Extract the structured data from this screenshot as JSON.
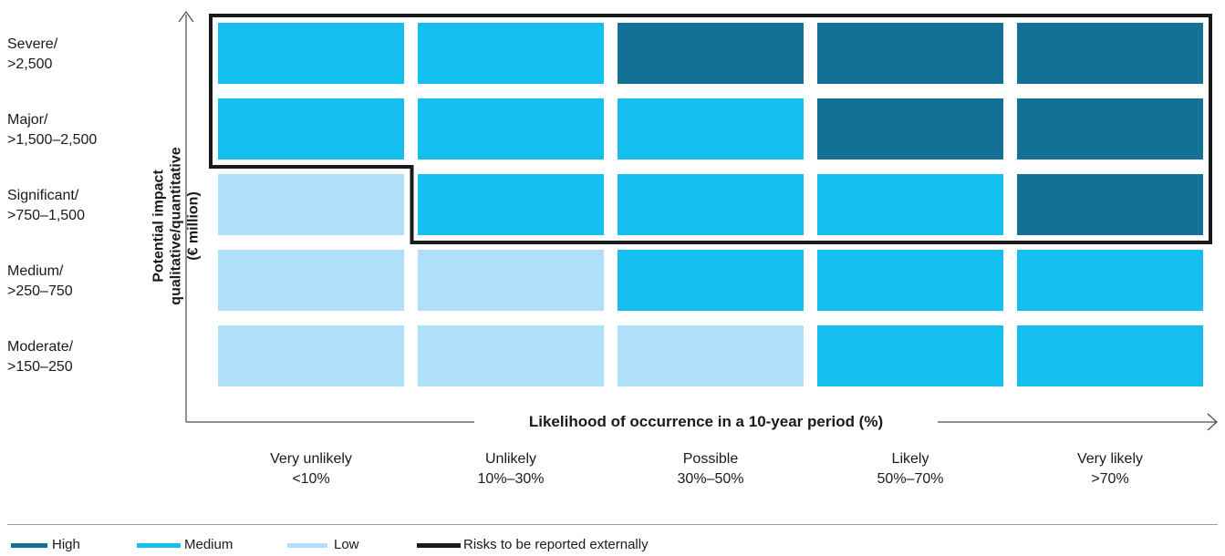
{
  "chart_data": {
    "type": "heatmap",
    "title": "",
    "ylabel": [
      "Potential impact",
      "qualitative/quantitative",
      "(€ million)"
    ],
    "xlabel": "Likelihood of occurrence in a 10-year period (%)",
    "rows": [
      {
        "label": "Severe/",
        "range": ">2,500"
      },
      {
        "label": "Major/",
        "range": ">1,500–2,500"
      },
      {
        "label": "Significant/",
        "range": ">750–1,500"
      },
      {
        "label": "Medium/",
        "range": ">250–750"
      },
      {
        "label": "Moderate/",
        "range": ">150–250"
      }
    ],
    "columns": [
      {
        "label": "Very unlikely",
        "range": "<10%"
      },
      {
        "label": "Unlikely",
        "range": "10%–30%"
      },
      {
        "label": "Possible",
        "range": "30%–50%"
      },
      {
        "label": "Likely",
        "range": "50%–70%"
      },
      {
        "label": "Very likely",
        "range": ">70%"
      }
    ],
    "values": [
      [
        "Medium",
        "Medium",
        "High",
        "High",
        "High"
      ],
      [
        "Medium",
        "Medium",
        "Medium",
        "High",
        "High"
      ],
      [
        "Low",
        "Medium",
        "Medium",
        "Medium",
        "High"
      ],
      [
        "Low",
        "Low",
        "Medium",
        "Medium",
        "Medium"
      ],
      [
        "Low",
        "Low",
        "Low",
        "Medium",
        "Medium"
      ]
    ],
    "reported_externally": [
      [
        true,
        true,
        true,
        true,
        true
      ],
      [
        true,
        true,
        true,
        true,
        true
      ],
      [
        false,
        true,
        true,
        true,
        true
      ],
      [
        false,
        false,
        false,
        false,
        false
      ],
      [
        false,
        false,
        false,
        false,
        false
      ]
    ],
    "colors": {
      "High": "#137196",
      "Medium": "#15bff0",
      "Low": "#aee1f9",
      "External": "#1a1a1a",
      "Axis": "#4a4a4a"
    },
    "legend": [
      {
        "key": "High",
        "label": "High"
      },
      {
        "key": "Medium",
        "label": "Medium"
      },
      {
        "key": "Low",
        "label": "Low"
      },
      {
        "key": "External",
        "label": "Risks to be reported externally"
      }
    ]
  }
}
